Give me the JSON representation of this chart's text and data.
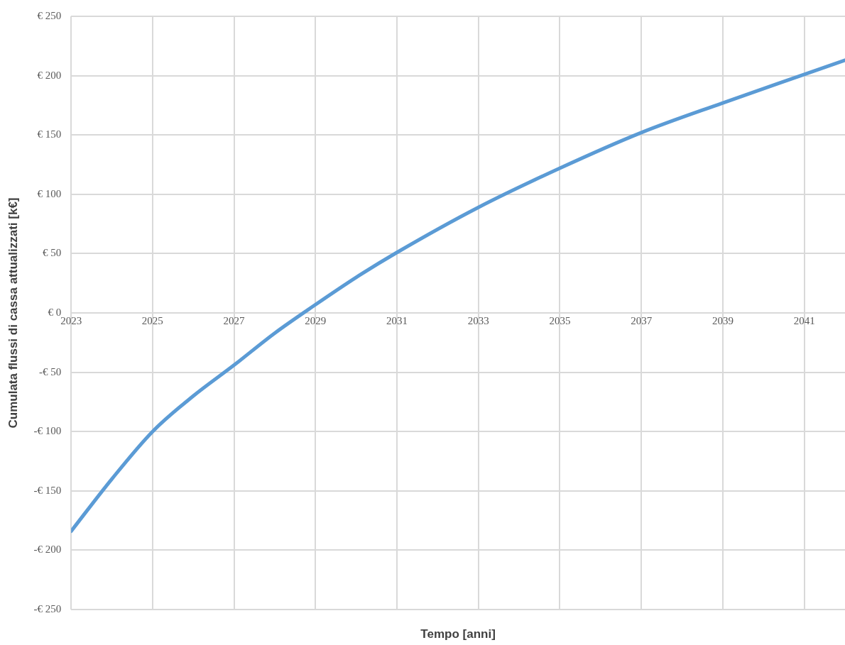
{
  "chart_data": {
    "type": "line",
    "xlabel": "Tempo [anni]",
    "ylabel": "Cumulata flussi di cassa attualizzati [k€]",
    "x": [
      2023,
      2024,
      2025,
      2026,
      2027,
      2028,
      2029,
      2030,
      2031,
      2033,
      2035,
      2037,
      2039,
      2041,
      2042
    ],
    "series": [
      {
        "color": "#5b9bd5",
        "values": [
          -184,
          -140,
          -100,
          -70,
          -44,
          -17,
          7,
          30,
          51,
          89,
          122,
          152,
          177,
          201,
          213
        ]
      }
    ],
    "xlim": [
      2023,
      2042
    ],
    "xticks": [
      2023,
      2025,
      2027,
      2029,
      2031,
      2033,
      2035,
      2037,
      2039,
      2041
    ],
    "ylim": [
      -250,
      250
    ],
    "yticks": [
      {
        "value": -250,
        "label": "-€ 250"
      },
      {
        "value": -200,
        "label": "-€ 200"
      },
      {
        "value": -150,
        "label": "-€ 150"
      },
      {
        "value": -100,
        "label": "-€ 100"
      },
      {
        "value": -50,
        "label": "-€ 50"
      },
      {
        "value": 0,
        "label": "€ 0"
      },
      {
        "value": 50,
        "label": "€ 50"
      },
      {
        "value": 100,
        "label": "€ 100"
      },
      {
        "value": 150,
        "label": "€ 150"
      },
      {
        "value": 200,
        "label": "€ 200"
      },
      {
        "value": 250,
        "label": "€ 250"
      }
    ],
    "grid": true,
    "legend": false,
    "marker": "none",
    "line_style": "solid"
  }
}
